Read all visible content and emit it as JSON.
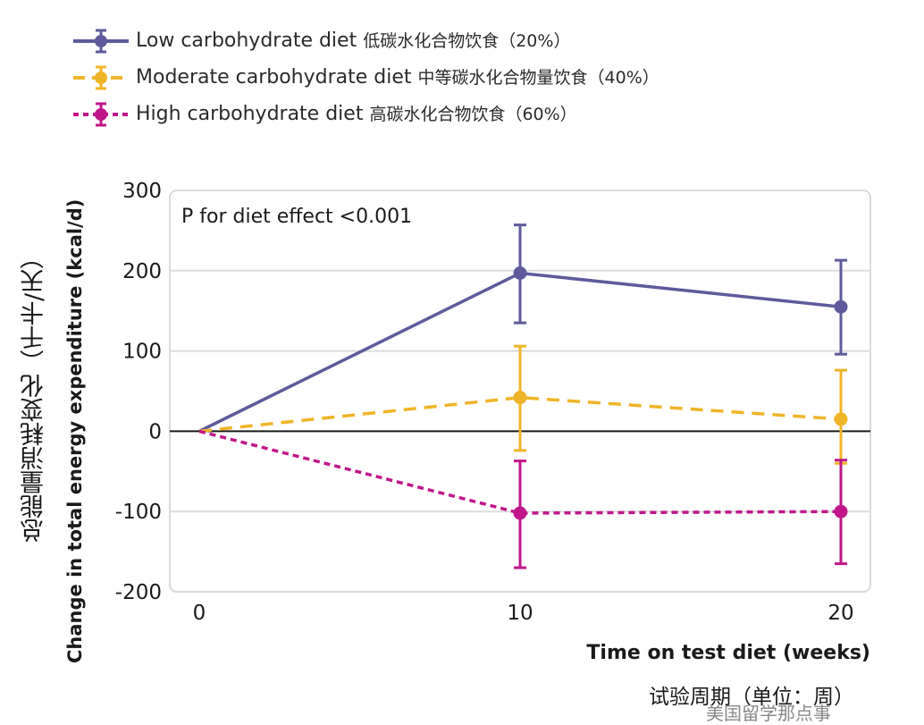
{
  "chart_data": {
    "type": "line",
    "title": "",
    "annotation": "P for diet effect <0.001",
    "xlabel": "Time on test diet (weeks)",
    "xlabel_cn": "试验周期（单位：周）",
    "ylabel": "Change in total energy expenditure (kcal/d)",
    "ylabel_cn": "总能量消耗变化（千卡/天）",
    "x": [
      0,
      10,
      20
    ],
    "xticks": [
      "0",
      "10",
      "20"
    ],
    "yticks": [
      "300",
      "200",
      "100",
      "0",
      "-100",
      "-200"
    ],
    "ylim": [
      -200,
      300
    ],
    "xlim": [
      -1,
      21
    ],
    "grid": true,
    "legend_position": "top-left",
    "series": [
      {
        "name": "Low carbohydrate diet",
        "name_cn": "低碳水化合物饮食（20%）",
        "color": "#5e5a9b",
        "style": "solid",
        "values": [
          0,
          197,
          155
        ],
        "err_low": [
          0,
          135,
          96
        ],
        "err_high": [
          0,
          257,
          213
        ]
      },
      {
        "name": "Moderate carbohydrate diet",
        "name_cn": "中等碳水化合物量饮食（40%）",
        "color": "#f0b429",
        "style": "dashed",
        "values": [
          0,
          42,
          15
        ],
        "err_low": [
          0,
          -24,
          -40
        ],
        "err_high": [
          0,
          106,
          76
        ]
      },
      {
        "name": "High carbohydrate diet",
        "name_cn": "高碳水化合物饮食（60%）",
        "color": "#c0168a",
        "style": "dotted",
        "values": [
          0,
          -102,
          -100
        ],
        "err_low": [
          0,
          -170,
          -165
        ],
        "err_high": [
          0,
          -37,
          -36
        ]
      }
    ]
  },
  "watermark": "美国留学那点事"
}
